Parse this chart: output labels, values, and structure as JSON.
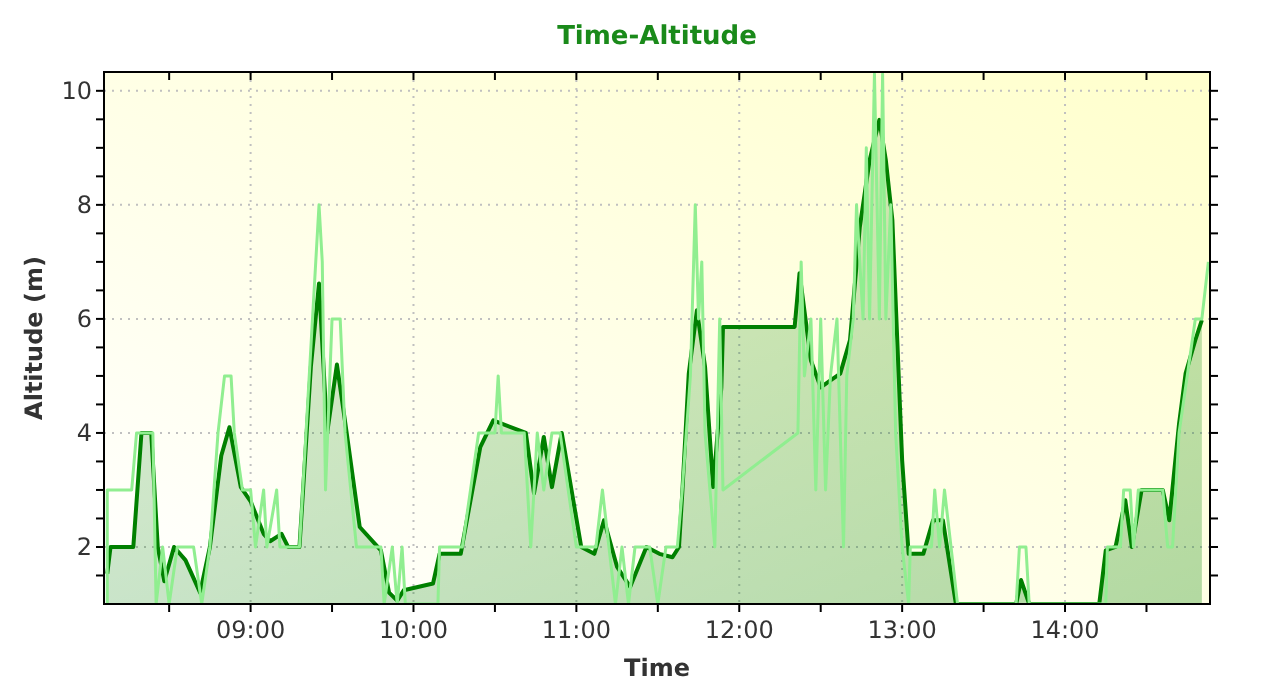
{
  "chart_data": {
    "type": "area",
    "title": "Time-Altitude",
    "xlabel": "Time",
    "ylabel": "Altitude (m)",
    "xlim": [
      8.1,
      14.89
    ],
    "ylim": [
      1,
      10.33
    ],
    "xticks": [
      {
        "value": 8.5,
        "label": null
      },
      {
        "value": 9,
        "label": "09:00"
      },
      {
        "value": 9.5,
        "label": null
      },
      {
        "value": 10,
        "label": "10:00"
      },
      {
        "value": 10.5,
        "label": null
      },
      {
        "value": 11,
        "label": "11:00"
      },
      {
        "value": 11.5,
        "label": null
      },
      {
        "value": 12,
        "label": "12:00"
      },
      {
        "value": 12.5,
        "label": null
      },
      {
        "value": 13,
        "label": "13:00"
      },
      {
        "value": 13.5,
        "label": null
      },
      {
        "value": 14,
        "label": "14:00"
      },
      {
        "value": 14.5,
        "label": null
      }
    ],
    "yticks": [
      {
        "value": 1.5,
        "label": null
      },
      2,
      {
        "value": 2.5,
        "label": null
      },
      {
        "value": 3,
        "label": null
      },
      {
        "value": 3.5,
        "label": null
      },
      4,
      {
        "value": 4.5,
        "label": null
      },
      {
        "value": 5,
        "label": null
      },
      {
        "value": 5.5,
        "label": null
      },
      6,
      {
        "value": 6.5,
        "label": null
      },
      {
        "value": 7,
        "label": null
      },
      {
        "value": 7.5,
        "label": null
      },
      8,
      {
        "value": 8.5,
        "label": null
      },
      {
        "value": 9,
        "label": null
      },
      {
        "value": 9.5,
        "label": null
      },
      10
    ],
    "grid": true,
    "marker": "none",
    "line_style": "solid",
    "series": [
      {
        "type": "line",
        "color": "#90ee90",
        "x": [
          8.12,
          8.12,
          8.27,
          8.3,
          8.4,
          8.42,
          8.46,
          8.5,
          8.55,
          8.65,
          8.7,
          8.75,
          8.8,
          8.84,
          8.88,
          8.9,
          8.95,
          9.0,
          9.03,
          9.08,
          9.1,
          9.16,
          9.18,
          9.3,
          9.36,
          9.4,
          9.42,
          9.44,
          9.46,
          9.5,
          9.55,
          9.58,
          9.65,
          9.8,
          9.82,
          9.87,
          9.9,
          9.93,
          9.95,
          10.15,
          10.16,
          10.3,
          10.35,
          10.4,
          10.5,
          10.52,
          10.54,
          10.68,
          10.72,
          10.76,
          10.8,
          10.85,
          10.9,
          11.0,
          11.12,
          11.16,
          11.2,
          11.24,
          11.28,
          11.32,
          11.36,
          11.45,
          11.5,
          11.55,
          11.62,
          11.65,
          11.7,
          11.73,
          11.75,
          11.77,
          11.79,
          11.82,
          11.85,
          11.88,
          11.9,
          12.36,
          12.38,
          12.4,
          12.44,
          12.47,
          12.5,
          12.53,
          12.56,
          12.6,
          12.64,
          12.66,
          12.7,
          12.72,
          12.76,
          12.78,
          12.8,
          12.83,
          12.86,
          12.88,
          12.9,
          12.93,
          12.96,
          13.0,
          13.04,
          13.05,
          13.18,
          13.2,
          13.23,
          13.26,
          13.3,
          13.34,
          13.7,
          13.72,
          13.76,
          13.78,
          14.25,
          14.26,
          14.34,
          14.36,
          14.4,
          14.42,
          14.45,
          14.6,
          14.63,
          14.66,
          14.7,
          14.75,
          14.8,
          14.84,
          14.88
        ],
        "values": [
          1.0,
          3.0,
          3.0,
          4.0,
          4.0,
          1.0,
          2.0,
          1.0,
          2.0,
          2.0,
          1.0,
          2.0,
          4.0,
          5.0,
          5.0,
          4.0,
          3.0,
          3.0,
          2.0,
          3.0,
          2.0,
          3.0,
          2.0,
          2.0,
          5.0,
          7.0,
          8.0,
          7.0,
          3.0,
          6.0,
          6.0,
          4.0,
          2.0,
          2.0,
          1.0,
          2.0,
          1.0,
          2.0,
          1.0,
          1.0,
          2.0,
          2.0,
          3.0,
          4.0,
          4.0,
          5.0,
          4.0,
          4.0,
          2.0,
          4.0,
          3.0,
          4.0,
          4.0,
          2.0,
          2.0,
          3.0,
          2.0,
          1.0,
          2.0,
          1.0,
          2.0,
          2.0,
          1.0,
          2.0,
          2.0,
          3.0,
          5.0,
          8.0,
          6.0,
          7.0,
          4.0,
          3.0,
          2.0,
          6.0,
          3.0,
          4.0,
          7.0,
          5.0,
          6.0,
          3.0,
          6.0,
          3.0,
          5.0,
          6.0,
          2.0,
          5.0,
          6.0,
          8.0,
          6.0,
          9.0,
          6.0,
          10.3,
          6.0,
          10.3,
          6.0,
          8.0,
          4.0,
          2.0,
          1.0,
          2.0,
          2.0,
          3.0,
          2.0,
          3.0,
          2.0,
          1.0,
          1.0,
          2.0,
          2.0,
          1.0,
          1.0,
          2.0,
          2.0,
          3.0,
          3.0,
          2.0,
          3.0,
          3.0,
          2.0,
          2.0,
          4.0,
          5.0,
          6.0,
          6.0,
          7.0
        ]
      },
      {
        "color": "#008000",
        "x": [
          8.12,
          8.14,
          8.28,
          8.33,
          8.39,
          8.43,
          8.47,
          8.53,
          8.6,
          8.69,
          8.75,
          8.82,
          8.87,
          8.94,
          9.0,
          9.08,
          9.12,
          9.19,
          9.23,
          9.3,
          9.37,
          9.42,
          9.47,
          9.53,
          9.59,
          9.67,
          9.8,
          9.85,
          9.9,
          9.94,
          10.12,
          10.16,
          10.29,
          10.41,
          10.49,
          10.69,
          10.74,
          10.8,
          10.85,
          10.91,
          11.03,
          11.11,
          11.17,
          11.25,
          11.33,
          11.43,
          11.51,
          11.59,
          11.63,
          11.65,
          11.69,
          11.74,
          11.79,
          11.84,
          11.89,
          11.9,
          12.11,
          12.34,
          12.37,
          12.44,
          12.5,
          12.56,
          12.62,
          12.68,
          12.74,
          12.8,
          12.86,
          12.9,
          12.94,
          13.0,
          13.04,
          13.13,
          13.19,
          13.25,
          13.33,
          13.7,
          13.73,
          13.78,
          14.21,
          14.25,
          14.31,
          14.37,
          14.41,
          14.47,
          14.6,
          14.64,
          14.7,
          14.74,
          14.8,
          14.84
        ],
        "values": [
          1.53,
          2.0,
          2.0,
          4.0,
          4.0,
          2.0,
          1.4,
          2.0,
          1.77,
          1.2,
          2.0,
          3.6,
          4.1,
          3.05,
          2.8,
          2.23,
          2.1,
          2.23,
          2.0,
          2.0,
          5.16,
          6.62,
          4.0,
          5.2,
          4.0,
          2.35,
          1.94,
          1.2,
          1.06,
          1.24,
          1.36,
          1.88,
          1.88,
          3.75,
          4.22,
          4.0,
          2.94,
          3.93,
          3.05,
          4.0,
          2.0,
          1.88,
          2.47,
          1.65,
          1.3,
          2.0,
          1.88,
          1.82,
          2.0,
          2.94,
          5.04,
          6.15,
          5.16,
          3.05,
          4.8,
          5.86,
          5.86,
          5.86,
          6.8,
          5.27,
          4.8,
          4.92,
          5.04,
          5.63,
          7.61,
          8.78,
          9.49,
          8.78,
          7.73,
          3.52,
          1.88,
          1.88,
          2.47,
          2.47,
          1.0,
          1.0,
          1.42,
          1.0,
          1.0,
          1.94,
          2.0,
          2.82,
          2.0,
          3.0,
          3.0,
          2.47,
          4.16,
          5.04,
          5.63,
          5.98
        ]
      }
    ]
  }
}
